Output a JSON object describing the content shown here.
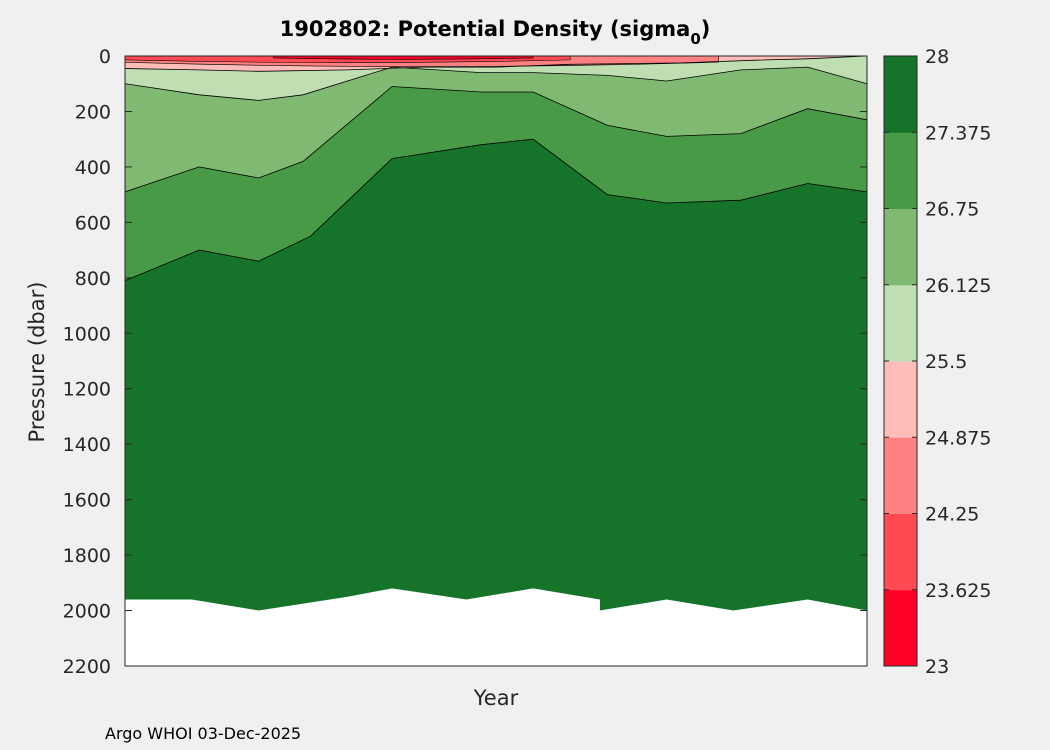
{
  "chart_data": {
    "type": "contour",
    "title_main": "1902802: Potential Density (sigma",
    "title_sub": "0",
    "title_tail": ")",
    "xlabel": "Year",
    "ylabel": "Pressure (dbar)",
    "ylim": [
      0,
      2200
    ],
    "yticks": [
      "0",
      "200",
      "400",
      "600",
      "800",
      "1000",
      "1200",
      "1400",
      "1600",
      "1800",
      "2000",
      "2200"
    ],
    "xlim": [
      0,
      1
    ],
    "colorbar": {
      "levels": [
        "23",
        "23.625",
        "24.25",
        "24.875",
        "25.5",
        "26.125",
        "26.75",
        "27.375",
        "28"
      ],
      "range": [
        23,
        28
      ],
      "colors": [
        "#ff0026",
        "#ff4a54",
        "#ff8282",
        "#ffbdb9",
        "#bfdeb1",
        "#80ba72",
        "#489a47",
        "#157429"
      ]
    },
    "contours": {
      "27.375": [
        [
          0,
          810
        ],
        [
          0.1,
          700
        ],
        [
          0.18,
          740
        ],
        [
          0.25,
          650
        ],
        [
          0.36,
          370
        ],
        [
          0.48,
          320
        ],
        [
          0.55,
          300
        ],
        [
          0.65,
          500
        ],
        [
          0.73,
          530
        ],
        [
          0.83,
          520
        ],
        [
          0.92,
          460
        ],
        [
          1,
          490
        ]
      ],
      "26.75": [
        [
          0,
          490
        ],
        [
          0.1,
          400
        ],
        [
          0.18,
          440
        ],
        [
          0.24,
          380
        ],
        [
          0.36,
          110
        ],
        [
          0.48,
          130
        ],
        [
          0.55,
          130
        ],
        [
          0.65,
          250
        ],
        [
          0.73,
          290
        ],
        [
          0.83,
          280
        ],
        [
          0.92,
          190
        ],
        [
          1,
          230
        ]
      ],
      "26.125": [
        [
          0,
          100
        ],
        [
          0.1,
          140
        ],
        [
          0.18,
          160
        ],
        [
          0.24,
          140
        ],
        [
          0.36,
          40
        ],
        [
          0.48,
          60
        ],
        [
          0.55,
          60
        ],
        [
          0.65,
          70
        ],
        [
          0.73,
          90
        ],
        [
          0.83,
          50
        ],
        [
          0.92,
          40
        ],
        [
          1,
          100
        ]
      ],
      "25.5": [
        [
          0,
          45
        ],
        [
          0.1,
          50
        ],
        [
          0.18,
          55
        ],
        [
          0.3,
          50
        ],
        [
          0.4,
          40
        ],
        [
          0.5,
          40
        ],
        [
          0.6,
          30
        ],
        [
          0.75,
          25
        ],
        [
          0.85,
          15
        ],
        [
          0.92,
          10
        ],
        [
          1,
          0
        ]
      ]
    },
    "surface_patches": [
      {
        "level": "24.875",
        "range": [
          0.0,
          0.8
        ]
      },
      {
        "level": "24.25",
        "range": [
          0.0,
          0.6
        ]
      },
      {
        "level": "23.625",
        "range": [
          0.2,
          0.55
        ]
      }
    ],
    "max_pressure": [
      [
        0,
        1960
      ],
      [
        0.09,
        1960
      ],
      [
        0.18,
        2000
      ],
      [
        0.3,
        1950
      ],
      [
        0.36,
        1920
      ],
      [
        0.46,
        1960
      ],
      [
        0.55,
        1920
      ],
      [
        0.64,
        1960
      ],
      [
        0.64,
        2000
      ],
      [
        0.73,
        1960
      ],
      [
        0.82,
        2000
      ],
      [
        0.92,
        1960
      ],
      [
        1,
        2000
      ]
    ],
    "footer": "Argo WHOI 03-Dec-2025"
  }
}
